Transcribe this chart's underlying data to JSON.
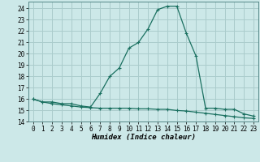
{
  "xlabel": "Humidex (Indice chaleur)",
  "bg_color": "#cce8e8",
  "grid_color": "#aacccc",
  "line_color": "#1a7060",
  "xlim": [
    -0.5,
    23.5
  ],
  "ylim": [
    14,
    24.6
  ],
  "yticks": [
    14,
    15,
    16,
    17,
    18,
    19,
    20,
    21,
    22,
    23,
    24
  ],
  "xticks": [
    0,
    1,
    2,
    3,
    4,
    5,
    6,
    7,
    8,
    9,
    10,
    11,
    12,
    13,
    14,
    15,
    16,
    17,
    18,
    19,
    20,
    21,
    22,
    23
  ],
  "line1_x": [
    0,
    1,
    2,
    3,
    4,
    5,
    6,
    7,
    8,
    9,
    10,
    11,
    12,
    13,
    14,
    15,
    16,
    17,
    18,
    19,
    20,
    21,
    22,
    23
  ],
  "line1_y": [
    16.0,
    15.75,
    15.75,
    15.6,
    15.6,
    15.4,
    15.3,
    16.5,
    18.0,
    18.75,
    20.5,
    21.0,
    22.2,
    23.9,
    24.2,
    24.2,
    21.8,
    19.8,
    15.2,
    15.2,
    15.1,
    15.1,
    14.7,
    14.5
  ],
  "line2_x": [
    0,
    1,
    2,
    3,
    4,
    5,
    6,
    7,
    8,
    9,
    10,
    11,
    12,
    13,
    14,
    15,
    16,
    17,
    18,
    19,
    20,
    21,
    22,
    23
  ],
  "line2_y": [
    16.0,
    15.75,
    15.6,
    15.5,
    15.4,
    15.3,
    15.25,
    15.2,
    15.2,
    15.2,
    15.2,
    15.15,
    15.15,
    15.1,
    15.1,
    15.0,
    14.95,
    14.85,
    14.75,
    14.65,
    14.55,
    14.45,
    14.35,
    14.3
  ]
}
